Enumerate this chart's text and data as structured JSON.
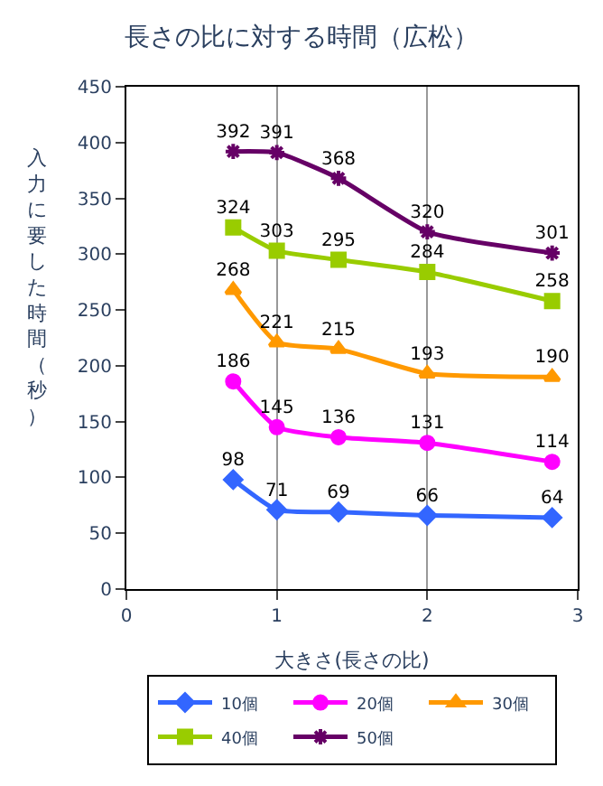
{
  "chart_data": {
    "type": "line",
    "title": "長さの比に対する時間（広松）",
    "xlabel": "大きさ(長さの比)",
    "ylabel": "入力に要した時間（秒）",
    "x": [
      0.71,
      1,
      1.41,
      2,
      2.83
    ],
    "series": [
      {
        "name": "10個",
        "color": "#3366ff",
        "marker": "diamond",
        "values": [
          98,
          71,
          69,
          66,
          64
        ]
      },
      {
        "name": "20個",
        "color": "#ff00ff",
        "marker": "circle",
        "values": [
          186,
          145,
          136,
          131,
          114
        ]
      },
      {
        "name": "30個",
        "color": "#ff9900",
        "marker": "triangle",
        "values": [
          268,
          221,
          215,
          193,
          190
        ]
      },
      {
        "name": "40個",
        "color": "#99cc00",
        "marker": "square",
        "values": [
          324,
          303,
          295,
          284,
          258
        ]
      },
      {
        "name": "50個",
        "color": "#660066",
        "marker": "cross",
        "values": [
          392,
          391,
          368,
          320,
          301
        ]
      }
    ],
    "xlim": [
      0,
      3
    ],
    "xticks": [
      0,
      1,
      2,
      3
    ],
    "ylim": [
      0,
      450
    ],
    "yticks": [
      0,
      50,
      100,
      150,
      200,
      250,
      300,
      350,
      400,
      450
    ],
    "grid": "x",
    "legend": "bottom",
    "data_labels": true
  }
}
